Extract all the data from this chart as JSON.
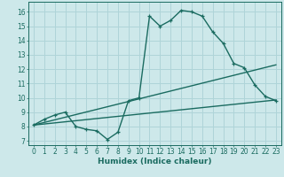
{
  "title": "",
  "xlabel": "Humidex (Indice chaleur)",
  "ylabel": "",
  "bg_color": "#cde8ea",
  "line_color": "#1a6b60",
  "grid_color": "#afd4d8",
  "xlim": [
    -0.5,
    23.5
  ],
  "ylim": [
    6.7,
    16.7
  ],
  "xticks": [
    0,
    1,
    2,
    3,
    4,
    5,
    6,
    7,
    8,
    9,
    10,
    11,
    12,
    13,
    14,
    15,
    16,
    17,
    18,
    19,
    20,
    21,
    22,
    23
  ],
  "yticks": [
    7,
    8,
    9,
    10,
    11,
    12,
    13,
    14,
    15,
    16
  ],
  "curve1_x": [
    0,
    1,
    2,
    3,
    4,
    5,
    6,
    7,
    8,
    9,
    10,
    11,
    12,
    13,
    14,
    15,
    16,
    17,
    18,
    19,
    20,
    21,
    22,
    23
  ],
  "curve1_y": [
    8.1,
    8.5,
    8.8,
    9.0,
    8.0,
    7.8,
    7.7,
    7.1,
    7.6,
    9.8,
    10.0,
    15.7,
    15.0,
    15.4,
    16.1,
    16.0,
    15.7,
    14.6,
    13.8,
    12.4,
    12.1,
    10.9,
    10.1,
    9.8
  ],
  "curve2_x": [
    0,
    23
  ],
  "curve2_y": [
    8.1,
    12.3
  ],
  "curve3_x": [
    0,
    23
  ],
  "curve3_y": [
    8.1,
    9.85
  ]
}
